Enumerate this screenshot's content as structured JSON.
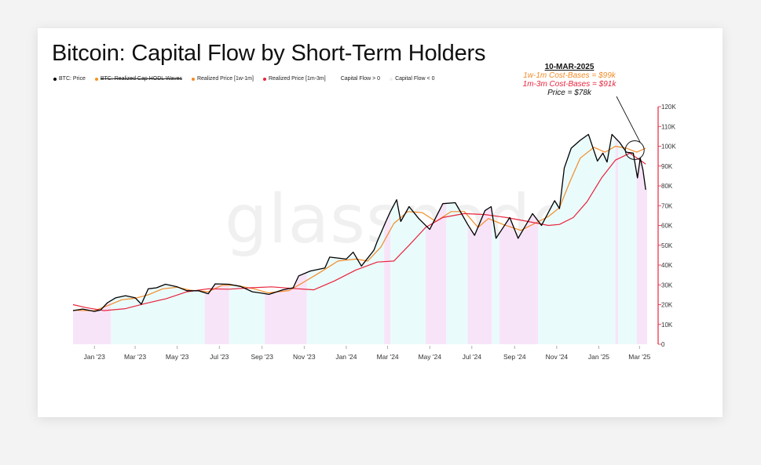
{
  "watermark": "glassnode",
  "chart_data": {
    "type": "line",
    "title": "Bitcoin: Capital Flow by Short-Term Holders",
    "legend": [
      {
        "label": "BTC: Price",
        "color": "#000000",
        "struck": false
      },
      {
        "label": "BTC: Realized Cap HODL Waves",
        "color": "#f7931a",
        "struck": true
      },
      {
        "label": "Realized Price [1w-1m]",
        "color": "#f28c28",
        "struck": false
      },
      {
        "label": "Realized Price [1m-3m]",
        "color": "#e8243c",
        "struck": false
      },
      {
        "label": "Capital Flow > 0",
        "color": "#ffffff",
        "struck": false
      },
      {
        "label": "Capital Flow < 0",
        "color": "#eeeeee",
        "struck": false
      }
    ],
    "x_ticks": [
      "Jan '23",
      "Mar '23",
      "May '23",
      "Jul '23",
      "Sep '23",
      "Nov '23",
      "Jan '24",
      "Mar '24",
      "May '24",
      "Jul '24",
      "Sep '24",
      "Nov '24",
      "Jan '25",
      "Mar '25"
    ],
    "x_range": [
      "2022-12-01",
      "2025-03-20"
    ],
    "y_ticks": [
      "0",
      "10K",
      "20K",
      "30K",
      "40K",
      "50K",
      "60K",
      "70K",
      "80K",
      "90K",
      "100K",
      "110K",
      "120K"
    ],
    "ylim": [
      0,
      120000
    ],
    "annotation": {
      "heading": "10-MAR-2025",
      "line1": "1w-1m Cost-Bases = $99k",
      "line2": "1m-3m Cost-Bases = $91k",
      "line3": "Price = $78k",
      "date": "2025-03-10",
      "colors": {
        "line1": "#f28c28",
        "line2": "#e8243c",
        "line3": "#111111"
      }
    },
    "capital_flow_regimes": [
      {
        "start": "2022-12-01",
        "end": "2023-01-25",
        "sign": "negative"
      },
      {
        "start": "2023-01-25",
        "end": "2023-06-10",
        "sign": "positive"
      },
      {
        "start": "2023-06-10",
        "end": "2023-07-15",
        "sign": "negative"
      },
      {
        "start": "2023-07-15",
        "end": "2023-09-05",
        "sign": "positive"
      },
      {
        "start": "2023-09-05",
        "end": "2023-11-05",
        "sign": "negative"
      },
      {
        "start": "2023-11-05",
        "end": "2024-02-25",
        "sign": "positive"
      },
      {
        "start": "2024-02-25",
        "end": "2024-03-05",
        "sign": "negative"
      },
      {
        "start": "2024-03-05",
        "end": "2024-04-25",
        "sign": "positive"
      },
      {
        "start": "2024-04-25",
        "end": "2024-05-25",
        "sign": "negative"
      },
      {
        "start": "2024-05-25",
        "end": "2024-06-25",
        "sign": "positive"
      },
      {
        "start": "2024-06-25",
        "end": "2024-07-30",
        "sign": "negative"
      },
      {
        "start": "2024-07-30",
        "end": "2024-08-10",
        "sign": "positive"
      },
      {
        "start": "2024-08-10",
        "end": "2024-10-05",
        "sign": "negative"
      },
      {
        "start": "2024-10-05",
        "end": "2025-01-25",
        "sign": "positive"
      },
      {
        "start": "2025-01-25",
        "end": "2025-01-29",
        "sign": "negative"
      },
      {
        "start": "2025-01-29",
        "end": "2025-02-25",
        "sign": "positive"
      },
      {
        "start": "2025-02-25",
        "end": "2025-03-12",
        "sign": "negative"
      }
    ],
    "series": [
      {
        "name": "BTC: Price",
        "color": "#000000",
        "points": [
          [
            "2022-12-01",
            17000
          ],
          [
            "2022-12-15",
            17800
          ],
          [
            "2023-01-01",
            16600
          ],
          [
            "2023-01-10",
            17300
          ],
          [
            "2023-01-20",
            21000
          ],
          [
            "2023-02-01",
            23500
          ],
          [
            "2023-02-15",
            24500
          ],
          [
            "2023-03-01",
            23500
          ],
          [
            "2023-03-10",
            20200
          ],
          [
            "2023-03-20",
            28000
          ],
          [
            "2023-04-01",
            28500
          ],
          [
            "2023-04-14",
            30300
          ],
          [
            "2023-05-01",
            29000
          ],
          [
            "2023-05-15",
            27000
          ],
          [
            "2023-06-01",
            27000
          ],
          [
            "2023-06-15",
            25500
          ],
          [
            "2023-06-25",
            30500
          ],
          [
            "2023-07-15",
            30300
          ],
          [
            "2023-08-01",
            29200
          ],
          [
            "2023-08-18",
            26500
          ],
          [
            "2023-09-01",
            25800
          ],
          [
            "2023-09-11",
            25200
          ],
          [
            "2023-10-01",
            27500
          ],
          [
            "2023-10-16",
            28500
          ],
          [
            "2023-10-24",
            34500
          ],
          [
            "2023-11-10",
            37000
          ],
          [
            "2023-12-01",
            38500
          ],
          [
            "2023-12-08",
            44000
          ],
          [
            "2024-01-01",
            43000
          ],
          [
            "2024-01-11",
            46500
          ],
          [
            "2024-01-23",
            39500
          ],
          [
            "2024-02-10",
            47500
          ],
          [
            "2024-02-15",
            52000
          ],
          [
            "2024-02-28",
            62500
          ],
          [
            "2024-03-05",
            67000
          ],
          [
            "2024-03-14",
            73000
          ],
          [
            "2024-03-20",
            62000
          ],
          [
            "2024-04-01",
            69500
          ],
          [
            "2024-04-15",
            63500
          ],
          [
            "2024-05-01",
            58000
          ],
          [
            "2024-05-20",
            71000
          ],
          [
            "2024-06-07",
            71500
          ],
          [
            "2024-06-25",
            60500
          ],
          [
            "2024-07-05",
            55000
          ],
          [
            "2024-07-20",
            67500
          ],
          [
            "2024-07-29",
            69500
          ],
          [
            "2024-08-05",
            53500
          ],
          [
            "2024-08-25",
            64000
          ],
          [
            "2024-09-06",
            53500
          ],
          [
            "2024-09-27",
            66000
          ],
          [
            "2024-10-10",
            60000
          ],
          [
            "2024-10-29",
            72500
          ],
          [
            "2024-11-05",
            68500
          ],
          [
            "2024-11-12",
            89000
          ],
          [
            "2024-11-22",
            99000
          ],
          [
            "2024-12-05",
            103000
          ],
          [
            "2024-12-17",
            106000
          ],
          [
            "2024-12-30",
            92500
          ],
          [
            "2025-01-07",
            96500
          ],
          [
            "2025-01-13",
            92000
          ],
          [
            "2025-01-20",
            106000
          ],
          [
            "2025-01-31",
            102000
          ],
          [
            "2025-02-10",
            97000
          ],
          [
            "2025-02-20",
            96500
          ],
          [
            "2025-02-26",
            84000
          ],
          [
            "2025-03-02",
            94000
          ],
          [
            "2025-03-06",
            88000
          ],
          [
            "2025-03-10",
            78000
          ]
        ]
      },
      {
        "name": "Realized Price [1w-1m]",
        "color": "#f28c28",
        "points": [
          [
            "2022-12-01",
            17200
          ],
          [
            "2023-01-01",
            16900
          ],
          [
            "2023-01-20",
            19500
          ],
          [
            "2023-02-10",
            22500
          ],
          [
            "2023-03-01",
            23200
          ],
          [
            "2023-03-20",
            25000
          ],
          [
            "2023-04-10",
            28000
          ],
          [
            "2023-05-01",
            28800
          ],
          [
            "2023-05-20",
            27300
          ],
          [
            "2023-06-15",
            26500
          ],
          [
            "2023-07-05",
            29800
          ],
          [
            "2023-07-25",
            29800
          ],
          [
            "2023-08-20",
            28000
          ],
          [
            "2023-09-10",
            26000
          ],
          [
            "2023-10-10",
            27100
          ],
          [
            "2023-11-01",
            31500
          ],
          [
            "2023-11-25",
            36500
          ],
          [
            "2023-12-20",
            42000
          ],
          [
            "2024-01-15",
            43000
          ],
          [
            "2024-02-01",
            42000
          ],
          [
            "2024-02-20",
            49000
          ],
          [
            "2024-03-10",
            61000
          ],
          [
            "2024-03-30",
            67000
          ],
          [
            "2024-04-20",
            66500
          ],
          [
            "2024-05-10",
            62000
          ],
          [
            "2024-06-01",
            67000
          ],
          [
            "2024-06-20",
            67000
          ],
          [
            "2024-07-10",
            59000
          ],
          [
            "2024-07-25",
            63500
          ],
          [
            "2024-08-15",
            60500
          ],
          [
            "2024-09-10",
            57500
          ],
          [
            "2024-09-30",
            61000
          ],
          [
            "2024-10-20",
            64500
          ],
          [
            "2024-11-05",
            69000
          ],
          [
            "2024-11-20",
            82000
          ],
          [
            "2024-12-05",
            94000
          ],
          [
            "2024-12-25",
            99500
          ],
          [
            "2025-01-10",
            97000
          ],
          [
            "2025-01-25",
            100000
          ],
          [
            "2025-02-10",
            99000
          ],
          [
            "2025-02-25",
            97000
          ],
          [
            "2025-03-10",
            99000
          ]
        ]
      },
      {
        "name": "Realized Price [1m-3m]",
        "color": "#e8243c",
        "points": [
          [
            "2022-12-01",
            20000
          ],
          [
            "2022-12-20",
            18500
          ],
          [
            "2023-01-15",
            17000
          ],
          [
            "2023-02-15",
            18000
          ],
          [
            "2023-03-15",
            20500
          ],
          [
            "2023-04-15",
            23000
          ],
          [
            "2023-05-15",
            26500
          ],
          [
            "2023-06-15",
            28000
          ],
          [
            "2023-07-15",
            27800
          ],
          [
            "2023-08-15",
            28500
          ],
          [
            "2023-09-15",
            29000
          ],
          [
            "2023-10-15",
            28200
          ],
          [
            "2023-11-15",
            27500
          ],
          [
            "2023-12-15",
            32000
          ],
          [
            "2024-01-15",
            37500
          ],
          [
            "2024-02-15",
            41500
          ],
          [
            "2024-03-10",
            42000
          ],
          [
            "2024-04-01",
            50000
          ],
          [
            "2024-04-25",
            59000
          ],
          [
            "2024-05-20",
            64000
          ],
          [
            "2024-06-20",
            66000
          ],
          [
            "2024-07-20",
            65500
          ],
          [
            "2024-08-20",
            64000
          ],
          [
            "2024-09-20",
            62000
          ],
          [
            "2024-10-20",
            60000
          ],
          [
            "2024-11-05",
            60500
          ],
          [
            "2024-11-25",
            64000
          ],
          [
            "2024-12-15",
            72000
          ],
          [
            "2025-01-05",
            84000
          ],
          [
            "2025-01-25",
            93000
          ],
          [
            "2025-02-15",
            96500
          ],
          [
            "2025-03-10",
            91000
          ]
        ]
      }
    ]
  }
}
